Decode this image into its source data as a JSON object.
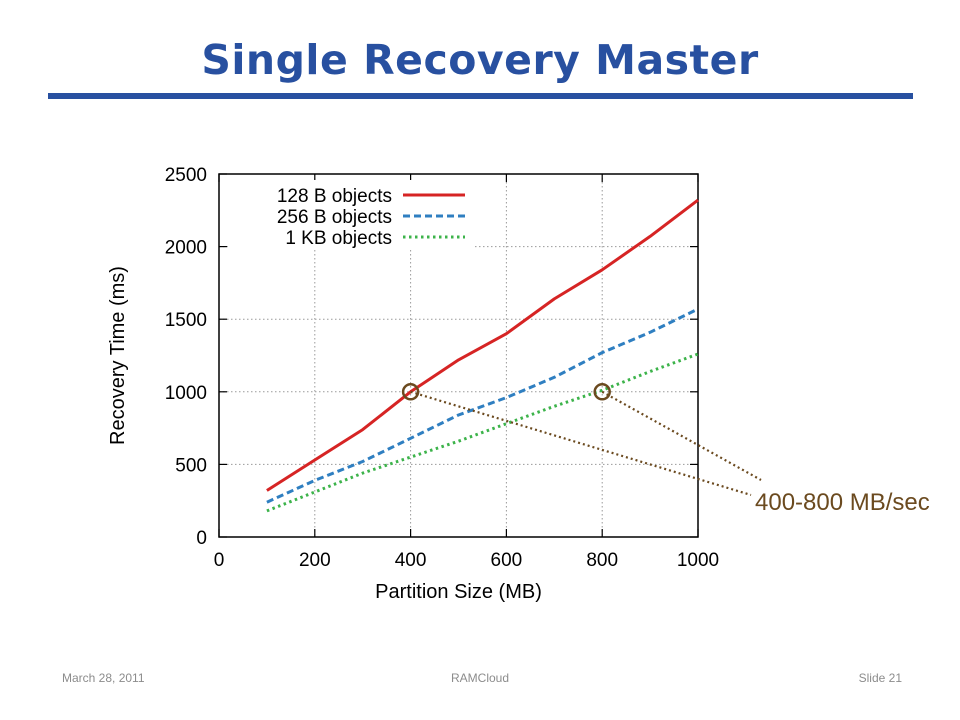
{
  "slide": {
    "title": "Single Recovery Master",
    "footer_date": "March 28, 2011",
    "footer_project": "RAMCloud",
    "footer_slide": "Slide 21"
  },
  "colors": {
    "title": "#2850a0",
    "rule": "#2850a0",
    "annotation": "#6b4a1f",
    "series_128": "#d62424",
    "series_256": "#2f7fc1",
    "series_1k": "#3cb34a"
  },
  "chart_data": {
    "type": "line",
    "xlabel": "Partition Size (MB)",
    "ylabel": "Recovery Time (ms)",
    "xlim": [
      0,
      1000
    ],
    "ylim": [
      0,
      2500
    ],
    "xticks": [
      0,
      200,
      400,
      600,
      800,
      1000
    ],
    "yticks": [
      0,
      500,
      1000,
      1500,
      2000,
      2500
    ],
    "grid": true,
    "legend_position": "top-left",
    "x": [
      100,
      200,
      300,
      400,
      500,
      600,
      700,
      800,
      900,
      1000
    ],
    "series": [
      {
        "name": "128 B objects",
        "style": "solid",
        "color": "#d62424",
        "values": [
          320,
          530,
          740,
          1000,
          1220,
          1400,
          1640,
          1840,
          2070,
          2320
        ]
      },
      {
        "name": "256 B objects",
        "style": "dashed",
        "color": "#2f7fc1",
        "values": [
          240,
          390,
          520,
          680,
          840,
          960,
          1100,
          1270,
          1410,
          1570
        ]
      },
      {
        "name": "1 KB objects",
        "style": "dotted",
        "color": "#3cb34a",
        "values": [
          180,
          310,
          440,
          550,
          660,
          780,
          900,
          1010,
          1140,
          1260
        ]
      }
    ],
    "annotation": {
      "text": "400-800 MB/sec",
      "points": [
        [
          400,
          1000
        ],
        [
          800,
          1000
        ]
      ]
    }
  }
}
